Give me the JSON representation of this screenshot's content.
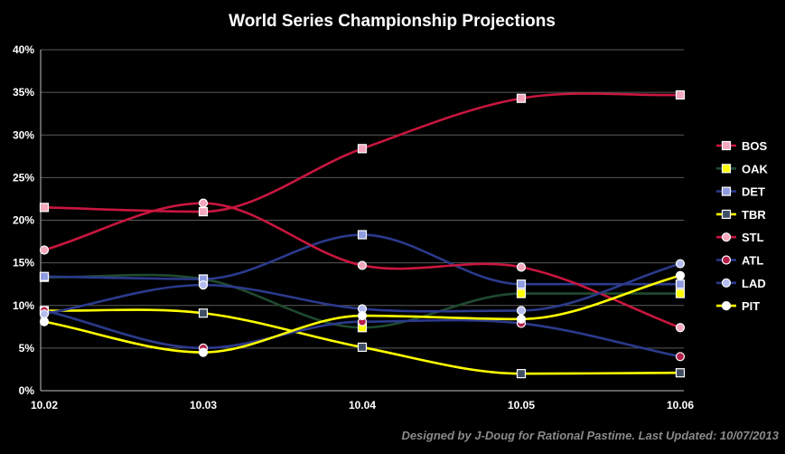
{
  "chart_data": {
    "type": "line",
    "title": "World Series Championship Projections",
    "x": [
      "10.02",
      "10.03",
      "10.04",
      "10.05",
      "10.06"
    ],
    "ylim": [
      0,
      40
    ],
    "yticks": [
      0,
      5,
      10,
      15,
      20,
      25,
      30,
      35,
      40
    ],
    "ytick_format": "{v}%",
    "grid": true,
    "legend_position": "right",
    "footnote": "Designed by J-Doug for Rational Pastime. Last Updated: 10/07/2013",
    "series": [
      {
        "name": "BOS",
        "color": "#c8163f",
        "marker": "square",
        "marker_fill": "#f4a8bc",
        "values": [
          21.5,
          21.0,
          28.4,
          34.3,
          34.7
        ]
      },
      {
        "name": "OAK",
        "color": "#1f4a2e",
        "marker": "square",
        "marker_fill": "#ffff00",
        "values": [
          13.3,
          13.1,
          7.4,
          11.4,
          11.4
        ]
      },
      {
        "name": "DET",
        "color": "#2b3a8c",
        "marker": "square",
        "marker_fill": "#8f9be0",
        "values": [
          13.4,
          13.1,
          18.3,
          12.5,
          12.5
        ]
      },
      {
        "name": "TBR",
        "color": "#ffff00",
        "marker": "square",
        "marker_fill": "#3f4e63",
        "values": [
          9.4,
          9.1,
          5.1,
          2.0,
          2.1
        ]
      },
      {
        "name": "STL",
        "color": "#c8163f",
        "marker": "circle",
        "marker_fill": "#f4a8bc",
        "values": [
          16.5,
          22.0,
          14.7,
          14.5,
          7.4
        ]
      },
      {
        "name": "ATL",
        "color": "#2b3a8c",
        "marker": "circle",
        "marker_fill": "#b51e4a",
        "values": [
          9.4,
          5.0,
          8.1,
          7.9,
          4.0
        ]
      },
      {
        "name": "LAD",
        "color": "#2b3a8c",
        "marker": "circle",
        "marker_fill": "#b4bcf0",
        "values": [
          9.0,
          12.4,
          9.6,
          9.4,
          14.9
        ]
      },
      {
        "name": "PIT",
        "color": "#ffff00",
        "marker": "circle",
        "marker_fill": "#ffffff",
        "values": [
          8.1,
          4.5,
          8.8,
          8.4,
          13.5
        ]
      }
    ]
  }
}
